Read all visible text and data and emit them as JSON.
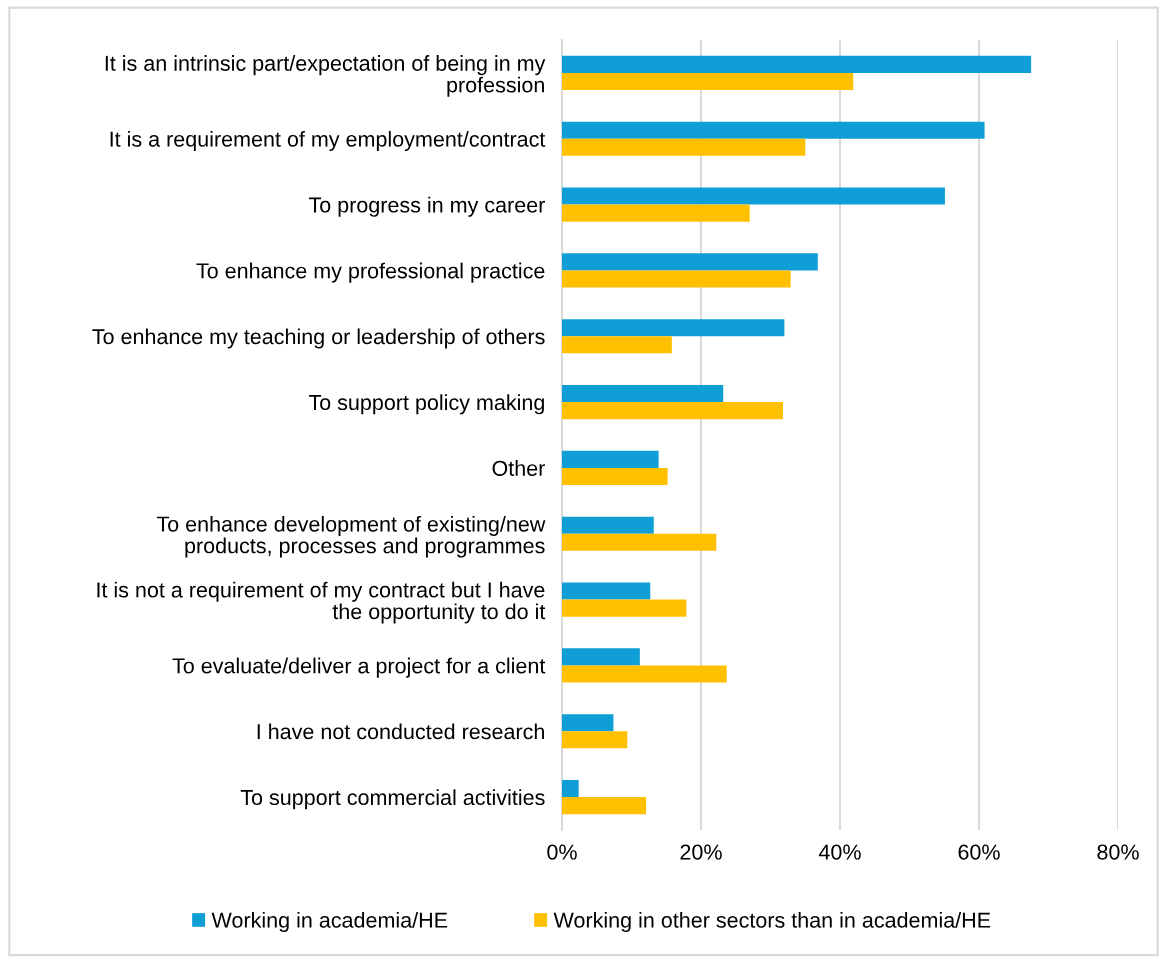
{
  "chart_data": {
    "type": "bar",
    "orientation": "horizontal",
    "categories": [
      "It is an intrinsic part/expectation of being in my\nprofession",
      "It is a requirement of my employment/contract",
      "To progress in my career",
      "To enhance my professional practice",
      "To enhance my teaching or leadership of others",
      "To support policy making",
      "Other",
      "To enhance development of existing/new\nproducts, processes and programmes",
      "It is not a requirement of my contract but I have\nthe opportunity to do it",
      "To evaluate/deliver a project for a client",
      "I have not conducted research",
      "To support commercial activities"
    ],
    "series": [
      {
        "name": "Working in academia/HE",
        "color": "#0f9ed5",
        "values": [
          67.5,
          60.8,
          55.1,
          36.8,
          32.0,
          23.2,
          13.9,
          13.2,
          12.7,
          11.2,
          7.4,
          2.4
        ]
      },
      {
        "name": "Working in other sectors than in academia/HE",
        "color": "#ffc000",
        "values": [
          41.9,
          35.0,
          27.0,
          32.9,
          15.8,
          31.8,
          15.2,
          22.2,
          17.9,
          23.7,
          9.4,
          12.1
        ]
      }
    ],
    "xlim": [
      0,
      80
    ],
    "xticks": [
      {
        "value": 0,
        "label": "0%"
      },
      {
        "value": 20,
        "label": "20%"
      },
      {
        "value": 40,
        "label": "40%"
      },
      {
        "value": 60,
        "label": "60%"
      },
      {
        "value": 80,
        "label": "80%"
      }
    ],
    "grid": "x",
    "legend": "bottom"
  }
}
